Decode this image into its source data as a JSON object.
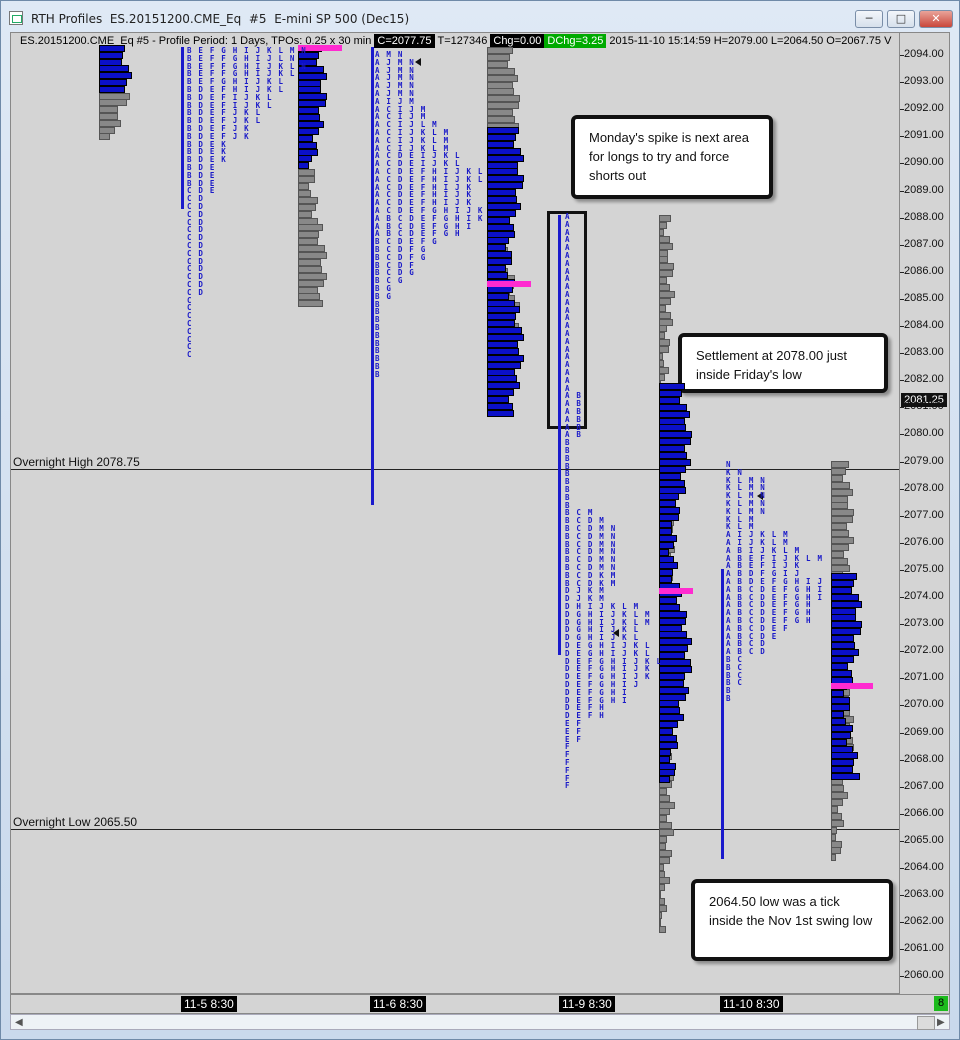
{
  "window": {
    "title": "RTH Profiles  ES.20151200.CME_Eq  #5  E-mini SP 500 (Dec15)",
    "minimize_icon": "minimize-icon",
    "maximize_icon": "maximize-icon",
    "close_icon": "close-icon"
  },
  "chart": {
    "info": {
      "symbol_text": "ES.20151200.CME_Eq  #5 - Profile Period: 1 Days, TPOs: 0.25 x 30 min",
      "close": "C=2077.75",
      "total": "T=127346",
      "chg": "Chg=0.00",
      "dchg": "DChg=3.25",
      "details": "2015-11-10 15:14:59  H=2079.00  L=2064.50  O=2067.75  V"
    },
    "overnight_high_label": "Overnight High  2078.75",
    "overnight_low_label": "Overnight Low  2065.50",
    "current_price": "2081.25",
    "price_axis": [
      "2094.00",
      "2093.00",
      "2092.00",
      "2091.00",
      "2090.00",
      "2089.00",
      "2088.00",
      "2087.00",
      "2086.00",
      "2085.00",
      "2084.00",
      "2083.00",
      "2082.00",
      "2081.00",
      "2080.00",
      "2079.00",
      "2078.00",
      "2077.00",
      "2076.00",
      "2075.00",
      "2074.00",
      "2073.00",
      "2072.00",
      "2071.00",
      "2070.00",
      "2069.00",
      "2068.00",
      "2067.00",
      "2066.00",
      "2065.00",
      "2064.00",
      "2063.00",
      "2062.00",
      "2061.00",
      "2060.00"
    ],
    "sessions": [
      "11-5  8:30",
      "11-6  8:30",
      "11-9  8:30",
      "11-10  8:30"
    ],
    "page_number": "8"
  },
  "annotations": {
    "monday_spike": "Monday's spike is next area for longs to try and force shorts out",
    "settlement": "Settlement at 2078.00 just inside Friday's low",
    "low_note": "2064.50 low was a tick inside the Nov 1st swing low"
  },
  "tpo_letters": {
    "d2": [
      "A M N",
      "A J M N",
      "A J M N",
      "A J M N",
      "A J M N",
      "A J M N",
      "A I J M",
      "A C I J M",
      "A C I J M",
      "A C I J L M",
      "A C I J K L M",
      "A C I J K L M",
      "A C I J K L M",
      "A C D E I J K L",
      "A C D E I J K L",
      "A C D E F H I J K L",
      "A C D E F H I J K L",
      "A C D E F H I J K",
      "A C D E F H I J K",
      "A C D E F H I J K",
      "A C D E F G H I J K",
      "A B C D E F G H I K",
      "A B C D E F G H I",
      "A B C D E F G H",
      "B C D E F G",
      "B C D F G",
      "B C D F G",
      "B C D F",
      "B C D G",
      "B C G",
      "B G",
      "B G",
      "B",
      "B",
      "B",
      "B",
      "B",
      "B",
      "B",
      "B",
      "B",
      "B"
    ],
    "d3": [
      "A",
      "A",
      "A",
      "A",
      "A",
      "A",
      "A",
      "A",
      "A",
      "A",
      "A",
      "A",
      "A",
      "A",
      "A",
      "A",
      "A",
      "A",
      "A",
      "A",
      "A",
      "A",
      "A",
      "A B",
      "A B",
      "A B",
      "A B",
      "A B",
      "A B",
      "B",
      "B",
      "B",
      "B",
      "B",
      "B",
      "B",
      "B",
      "B",
      "B C M",
      "B C D M",
      "B C D M N",
      "B C D M N",
      "B C D M N",
      "B C D M N",
      "B C D M N",
      "B C D M N",
      "B C D K M",
      "B C D K M",
      "D J K M",
      "D J K M",
      "D H I J K L M",
      "D G H I J K L M",
      "D G H I J K L M",
      "D G H I J K L",
      "D G H I J K L",
      "D E G H I J K L",
      "D E G H I J K L",
      "D E F G H I J K L",
      "D E F G H I J K",
      "D E F G H I J K",
      "D E F G H I J",
      "D E F G H I",
      "D E F G H I",
      "D E F H",
      "D E F H",
      "E F",
      "E F",
      "E F",
      "F",
      "F",
      "F",
      "F",
      "F",
      "F"
    ],
    "d4": [
      "N",
      "K N",
      "K L M N",
      "K L M N",
      "K L M N",
      "K L M N",
      "K L M N",
      "K L M",
      "K L M",
      "A I J K L M",
      "A I J K L M",
      "A B I J K L M",
      "A B E F I J K L M",
      "A B E F I J K",
      "A B D F G I J",
      "A B D E F G H I J",
      "A B C D E F G H I",
      "A B C D E F G H I",
      "A B C D E F G H",
      "A B C D E F G H",
      "A B C D E F G H",
      "A B C D E F",
      "A B C D E",
      "A B C D",
      "A B C D",
      "B C",
      "B C",
      "B C",
      "B C",
      "B",
      "B"
    ],
    "d1": [
      "B E F G H I J K L M N",
      "B E F F G H I J L N",
      "B E F F G H I J K L N",
      "B E F F G H I J K L",
      "B E F G H I J K L",
      "B D E F H I J K L",
      "B D E F I J K L",
      "B D E F I J K L",
      "B D E F J K L",
      "B D E F J K L",
      "B D E F J K",
      "B D E F J K",
      "B D E K",
      "B D E K",
      "B D E K",
      "B D E",
      "B D E",
      "B D E",
      "C D E",
      "C D",
      "C D",
      "C D",
      "C D",
      "C D",
      "C D",
      "C D",
      "C D",
      "C D",
      "C D",
      "C D",
      "C D",
      "C D",
      "C",
      "C",
      "C",
      "C",
      "C",
      "C",
      "C",
      "C"
    ]
  }
}
